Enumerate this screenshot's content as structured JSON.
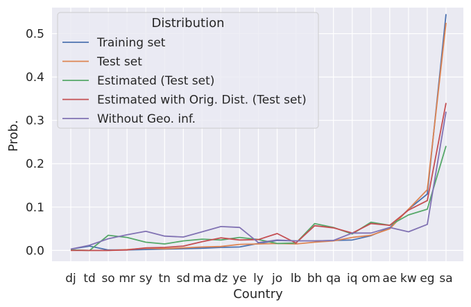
{
  "chart_data": {
    "type": "line",
    "title": "",
    "xlabel": "Country",
    "ylabel": "Prob.",
    "ylim": [
      -0.025,
      0.56
    ],
    "yticks": [
      0.0,
      0.1,
      0.2,
      0.3,
      0.4,
      0.5
    ],
    "ytick_labels": [
      "0.0",
      "0.1",
      "0.2",
      "0.3",
      "0.4",
      "0.5"
    ],
    "grid": true,
    "legend_title": "Distribution",
    "legend_position": "top-left",
    "categories": [
      "dj",
      "td",
      "so",
      "mr",
      "sy",
      "tn",
      "sd",
      "ma",
      "dz",
      "ye",
      "ly",
      "jo",
      "lb",
      "bh",
      "qa",
      "iq",
      "om",
      "ae",
      "kw",
      "eg",
      "sa"
    ],
    "series": [
      {
        "name": "Training set",
        "color": "#4c72b0",
        "values": [
          0.003,
          0.01,
          0.001,
          0.001,
          0.002,
          0.003,
          0.004,
          0.005,
          0.007,
          0.008,
          0.016,
          0.023,
          0.022,
          0.022,
          0.023,
          0.024,
          0.034,
          0.052,
          0.095,
          0.13,
          0.545
        ]
      },
      {
        "name": "Test set",
        "color": "#dd8452",
        "values": [
          0.001,
          0.0,
          0.0,
          0.002,
          0.005,
          0.004,
          0.006,
          0.008,
          0.009,
          0.014,
          0.015,
          0.016,
          0.015,
          0.019,
          0.022,
          0.03,
          0.035,
          0.05,
          0.095,
          0.14,
          0.525
        ]
      },
      {
        "name": "Estimated (Test set)",
        "color": "#55a868",
        "values": [
          0.001,
          0.0,
          0.035,
          0.03,
          0.019,
          0.015,
          0.022,
          0.026,
          0.024,
          0.03,
          0.025,
          0.016,
          0.017,
          0.062,
          0.053,
          0.038,
          0.065,
          0.058,
          0.082,
          0.095,
          0.241
        ]
      },
      {
        "name": "Estimated with Orig. Dist. (Test set)",
        "color": "#c44e52",
        "values": [
          0.0,
          0.0,
          0.0,
          0.001,
          0.006,
          0.007,
          0.01,
          0.02,
          0.029,
          0.024,
          0.025,
          0.039,
          0.017,
          0.057,
          0.052,
          0.04,
          0.062,
          0.058,
          0.093,
          0.115,
          0.34
        ]
      },
      {
        "name": "Without Geo. inf.",
        "color": "#8172b3",
        "values": [
          0.003,
          0.012,
          0.027,
          0.036,
          0.044,
          0.033,
          0.031,
          0.043,
          0.055,
          0.053,
          0.018,
          0.024,
          0.022,
          0.022,
          0.023,
          0.04,
          0.04,
          0.053,
          0.043,
          0.06,
          0.32
        ]
      }
    ]
  }
}
